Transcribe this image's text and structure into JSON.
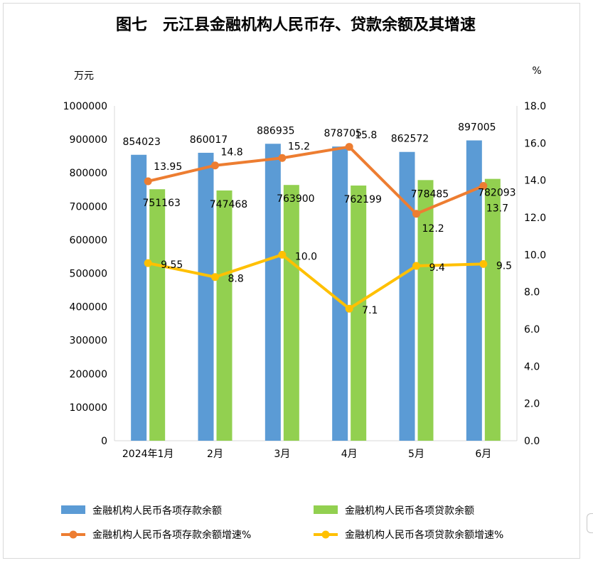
{
  "chart_data": {
    "type": "bar",
    "title": "图七　元江县金融机构人民币存、贷款余额及其增速",
    "ylabel_left": "万元",
    "ylabel_right": "%",
    "ylim_left": [
      0,
      1000000
    ],
    "ylim_right": [
      0,
      18
    ],
    "left_ticks": [
      "0",
      "100000",
      "200000",
      "300000",
      "400000",
      "500000",
      "600000",
      "700000",
      "800000",
      "900000",
      "1000000"
    ],
    "right_ticks": [
      "0.0",
      "2.0",
      "4.0",
      "6.0",
      "8.0",
      "10.0",
      "12.0",
      "14.0",
      "16.0",
      "18.0"
    ],
    "categories": [
      "2024年1月",
      "2月",
      "3月",
      "4月",
      "5月",
      "6月"
    ],
    "bar_series": [
      {
        "name": "金融机构人民币各项存款余额",
        "color": "#5b9bd5",
        "values": [
          854023,
          860017,
          886935,
          878705,
          862572,
          897005
        ],
        "labels": [
          "854023",
          "860017",
          "886935",
          "878705",
          "862572",
          "897005"
        ]
      },
      {
        "name": "金融机构人民币各项贷款余额",
        "color": "#92d050",
        "values": [
          751163,
          747468,
          763900,
          762199,
          778485,
          782093
        ],
        "labels": [
          "751163",
          "747468",
          "763900",
          "762199",
          "778485",
          "782093"
        ]
      }
    ],
    "line_series": [
      {
        "name": "金融机构人民币各项存款余额增速%",
        "color": "#ed7d31",
        "values": [
          13.95,
          14.8,
          15.2,
          15.8,
          12.2,
          13.7
        ],
        "labels": [
          "13.95",
          "14.8",
          "15.2",
          "15.8",
          "12.2",
          "13.7"
        ]
      },
      {
        "name": "金融机构人民币各项贷款余额增速%",
        "color": "#ffc000",
        "values": [
          9.55,
          8.8,
          10.0,
          7.1,
          9.4,
          9.5
        ],
        "labels": [
          "9.55",
          "8.8",
          "10.0",
          "7.1",
          "9.4",
          "9.5"
        ]
      }
    ],
    "legend_position": "bottom",
    "grid": false
  }
}
